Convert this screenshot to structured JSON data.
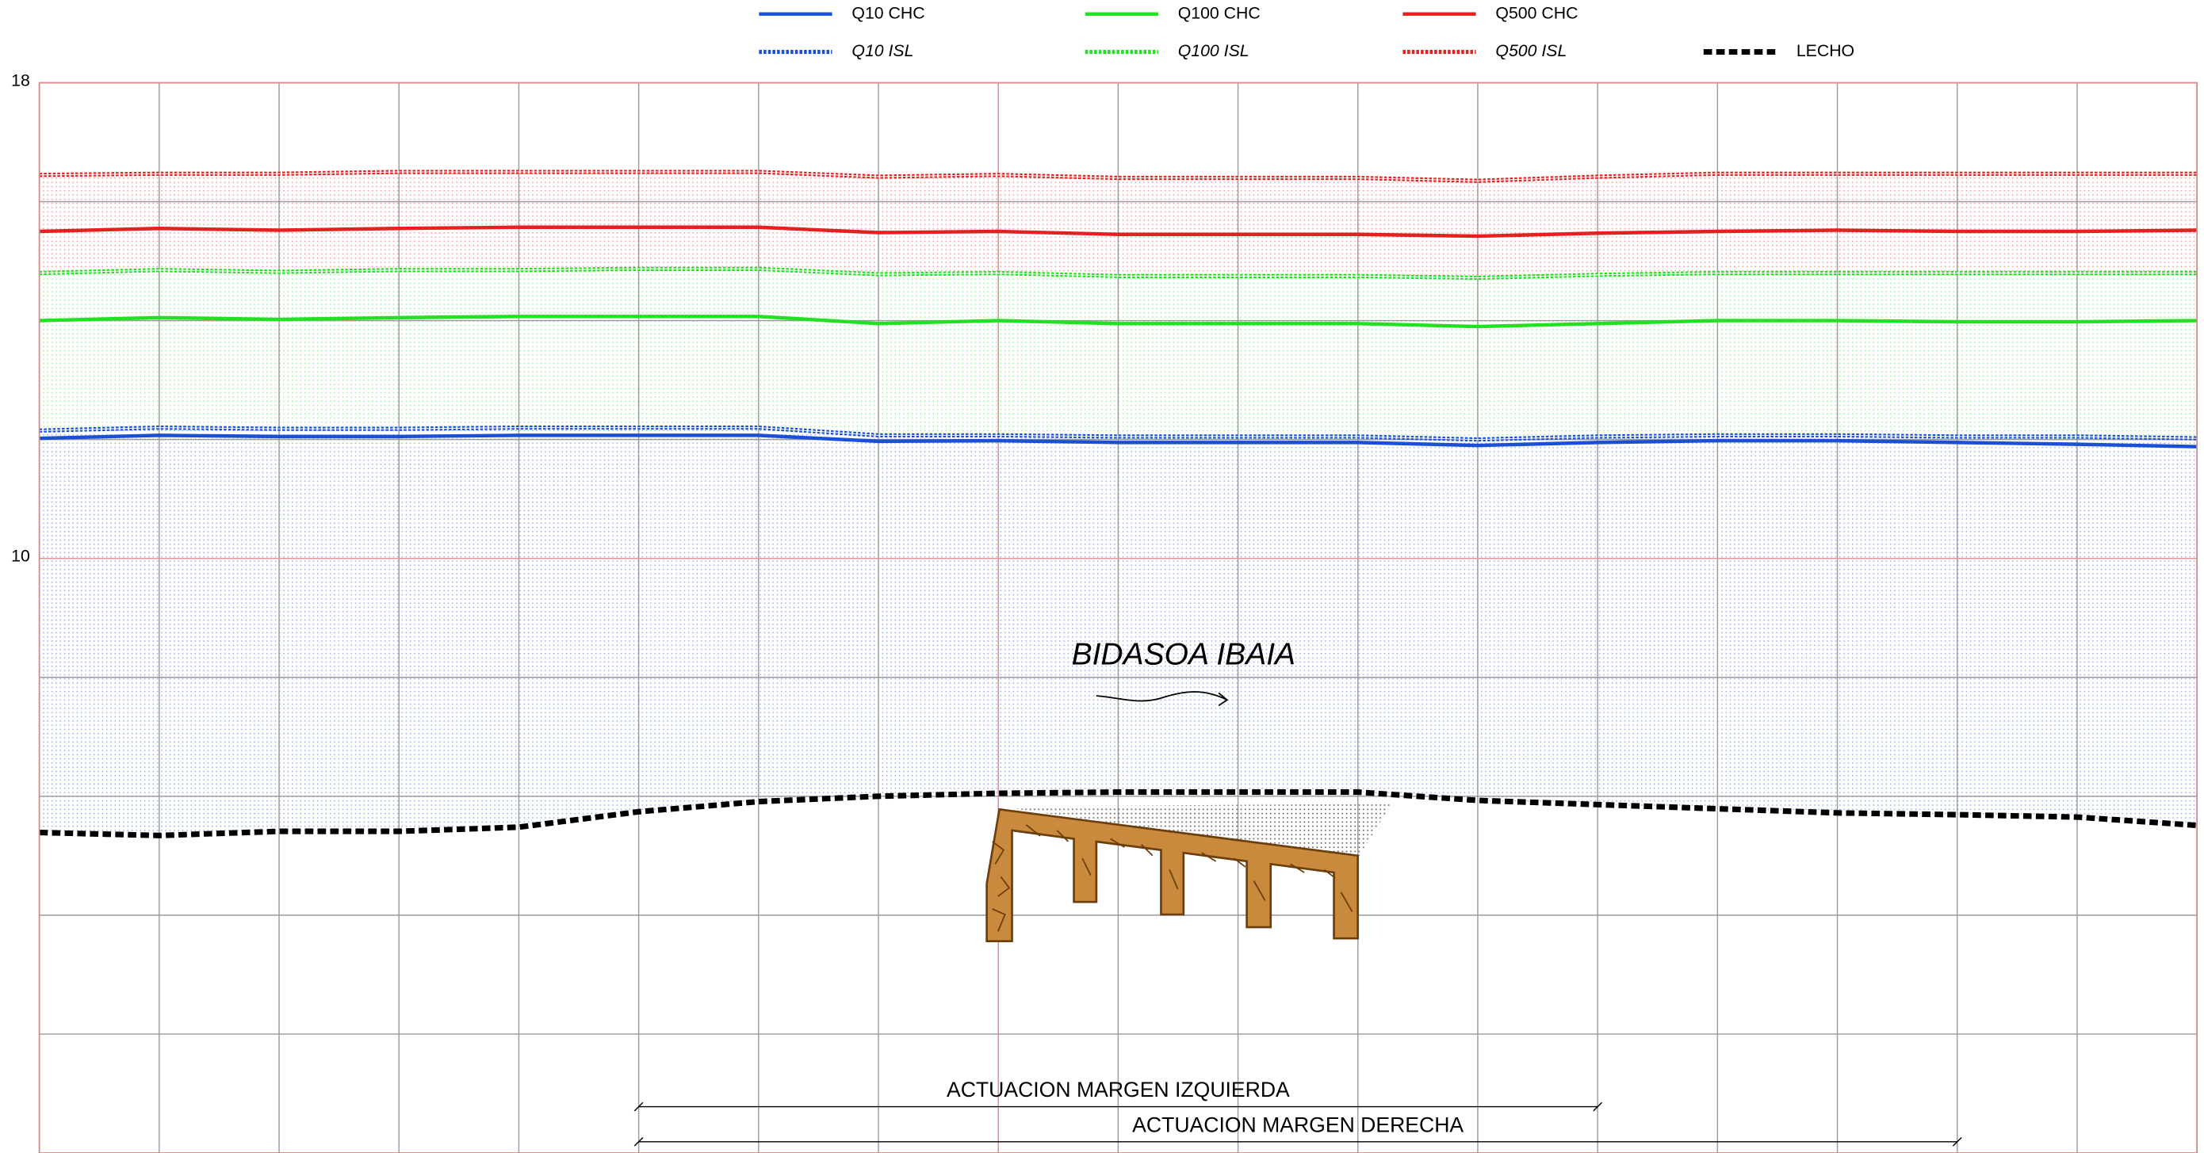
{
  "chart_data": {
    "type": "line",
    "title": "BIDASOA IBAIA",
    "x": [
      0,
      1,
      2,
      3,
      4,
      5,
      6,
      7,
      8,
      9,
      10,
      11,
      12,
      13,
      14,
      15,
      16,
      17,
      18
    ],
    "xlim": [
      0,
      18
    ],
    "ylim": [
      0,
      18
    ],
    "yticks": [
      10,
      18
    ],
    "ygrid": [
      0,
      2,
      4,
      6,
      8,
      10,
      12,
      14,
      16,
      18
    ],
    "grid": true,
    "series": [
      {
        "name": "Q10 CHC",
        "color": "#1a4fd6",
        "style": "solid",
        "values": [
          12.02,
          12.07,
          12.05,
          12.05,
          12.07,
          12.07,
          12.07,
          11.97,
          11.98,
          11.95,
          11.95,
          11.95,
          11.9,
          11.95,
          11.98,
          11.98,
          11.95,
          11.92,
          11.88
        ]
      },
      {
        "name": "Q100 CHC",
        "color": "#22e022",
        "style": "solid",
        "values": [
          14.0,
          14.05,
          14.02,
          14.05,
          14.07,
          14.07,
          14.07,
          13.95,
          14.0,
          13.95,
          13.95,
          13.95,
          13.9,
          13.95,
          14.0,
          14.0,
          13.98,
          13.98,
          14.0
        ]
      },
      {
        "name": "Q500 CHC",
        "color": "#e52020",
        "style": "solid",
        "values": [
          15.5,
          15.55,
          15.52,
          15.55,
          15.57,
          15.57,
          15.57,
          15.48,
          15.5,
          15.45,
          15.45,
          15.45,
          15.42,
          15.47,
          15.5,
          15.52,
          15.5,
          15.5,
          15.52
        ]
      },
      {
        "name": "Q10 ISL",
        "color": "#1a4fd6",
        "style": "dotted",
        "values": [
          12.15,
          12.2,
          12.18,
          12.18,
          12.2,
          12.2,
          12.2,
          12.07,
          12.07,
          12.05,
          12.05,
          12.05,
          12.0,
          12.05,
          12.07,
          12.07,
          12.05,
          12.05,
          12.02
        ]
      },
      {
        "name": "Q100 ISL",
        "color": "#22e022",
        "style": "dotted",
        "values": [
          14.8,
          14.85,
          14.82,
          14.85,
          14.85,
          14.87,
          14.87,
          14.78,
          14.8,
          14.75,
          14.75,
          14.75,
          14.72,
          14.77,
          14.8,
          14.8,
          14.8,
          14.8,
          14.8
        ]
      },
      {
        "name": "Q500 ISL",
        "color": "#e52020",
        "style": "dotted",
        "values": [
          16.45,
          16.47,
          16.47,
          16.5,
          16.5,
          16.5,
          16.5,
          16.42,
          16.45,
          16.4,
          16.4,
          16.4,
          16.35,
          16.42,
          16.47,
          16.47,
          16.47,
          16.47,
          16.47
        ]
      },
      {
        "name": "LECHO",
        "color": "#000000",
        "style": "heavy",
        "values": [
          5.39,
          5.34,
          5.41,
          5.41,
          5.48,
          5.74,
          5.91,
          6.0,
          6.05,
          6.07,
          6.07,
          6.07,
          5.93,
          5.86,
          5.79,
          5.72,
          5.69,
          5.65,
          5.51
        ]
      }
    ],
    "annotations": [
      {
        "text": "ACTUACION MARGEN IZQUIERDA",
        "x": [
          5,
          13
        ]
      },
      {
        "text": "ACTUACION MARGEN DERECHA",
        "x": [
          5,
          16
        ]
      }
    ]
  }
}
